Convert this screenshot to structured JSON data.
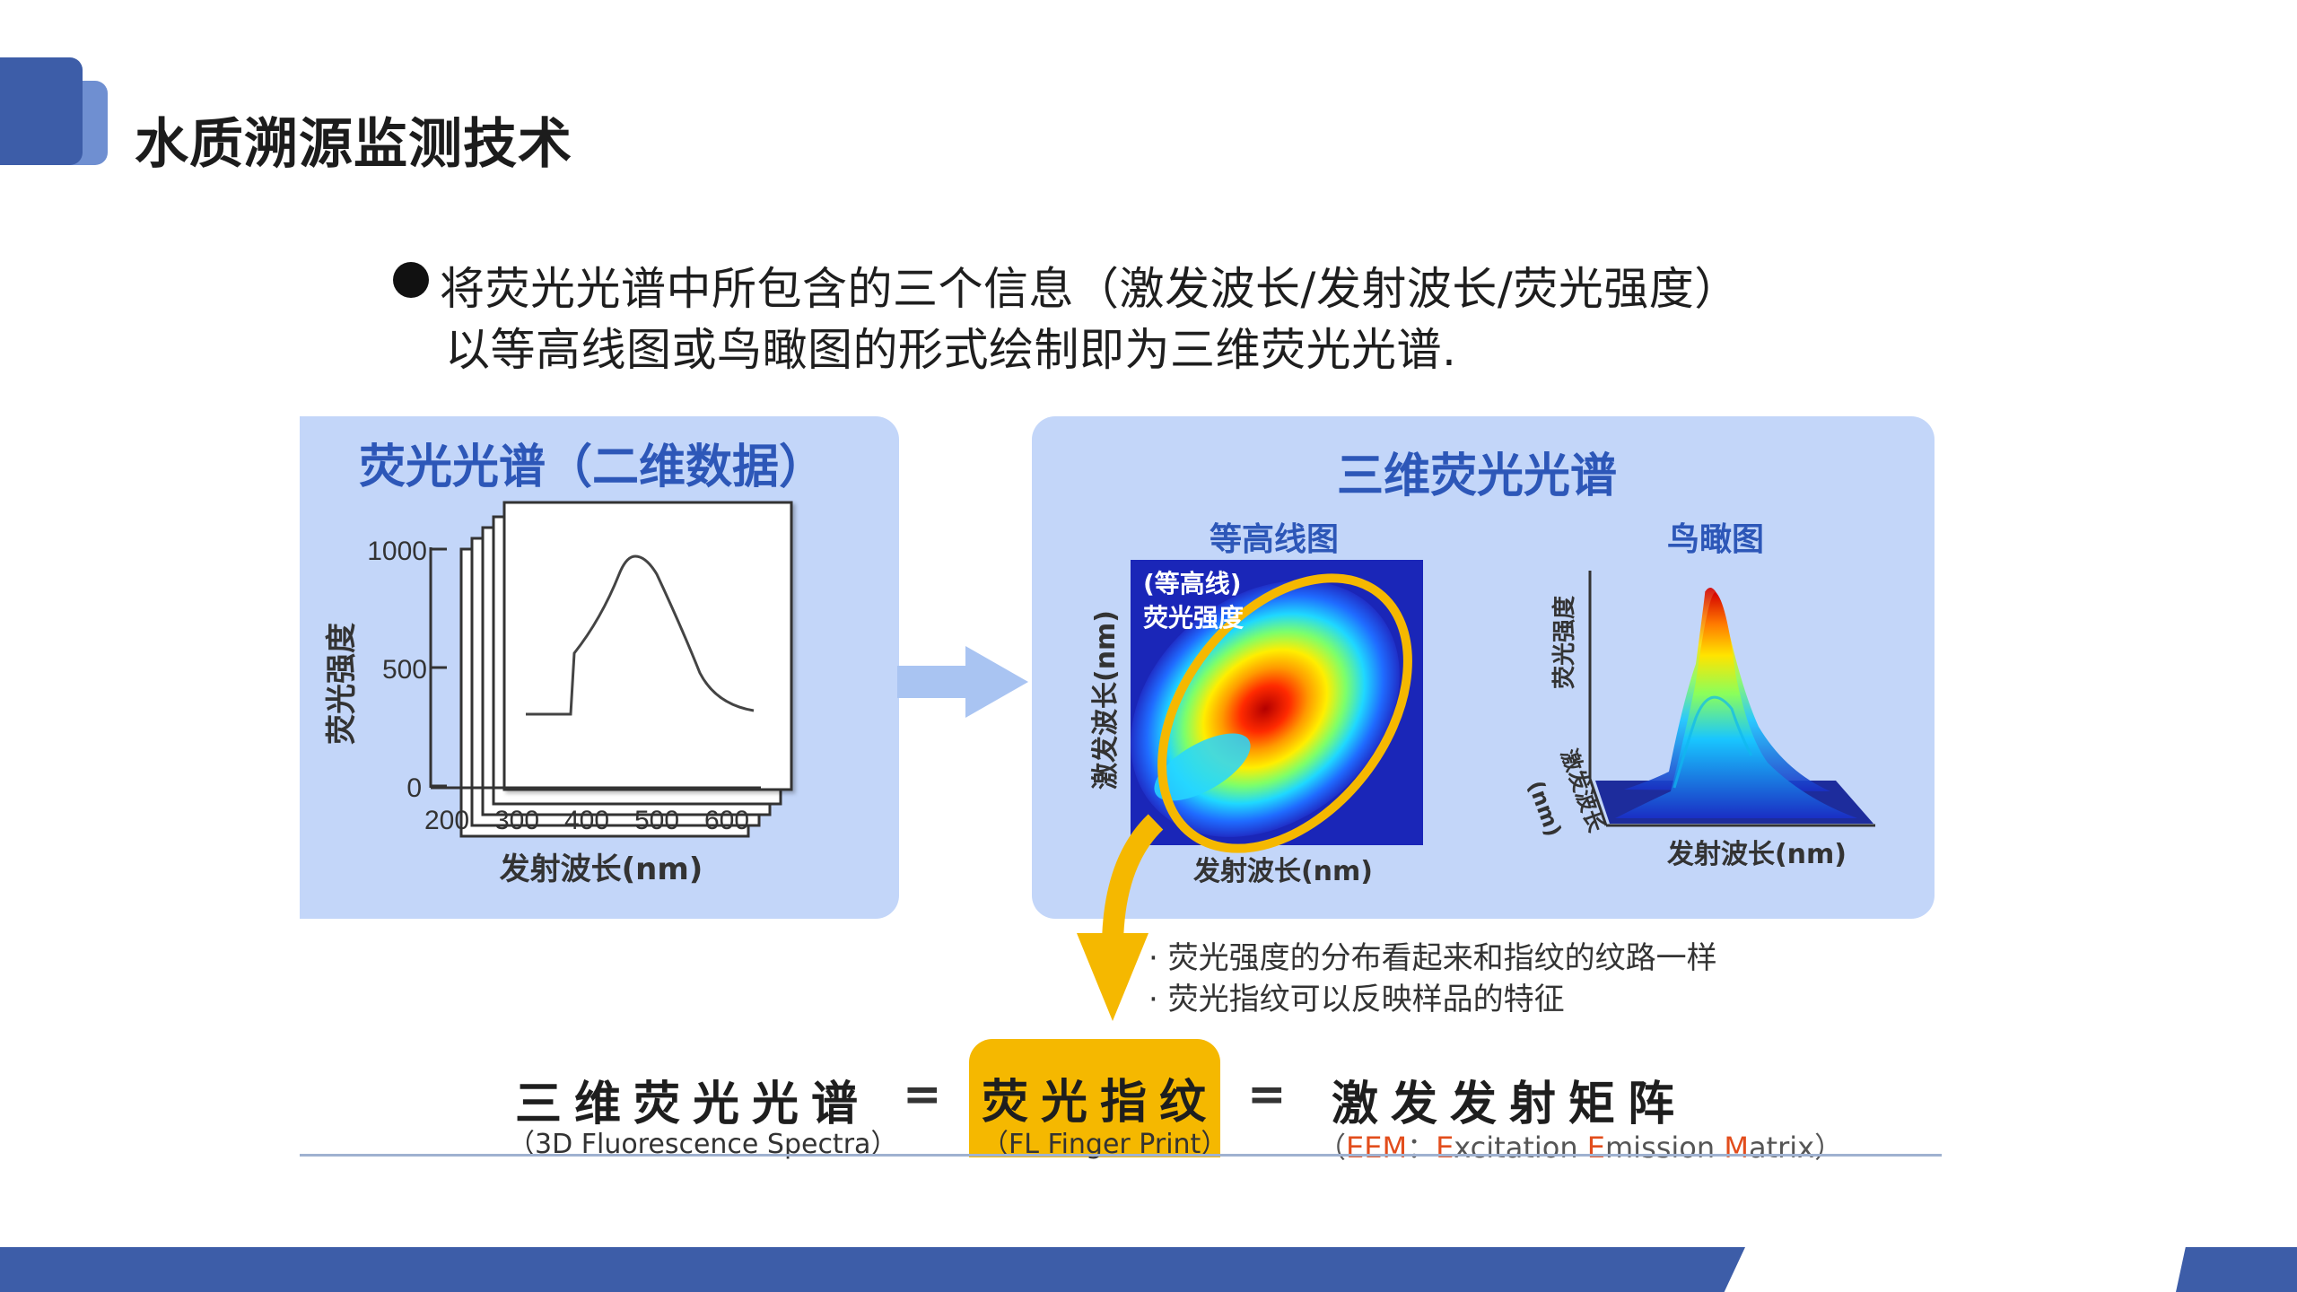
{
  "header": {
    "title": "水质溯源监测技术"
  },
  "bullet": {
    "line1": "将荧光光谱中所包含的三个信息（激发波长/发射波长/荧光强度）",
    "line2": "以等高线图或鸟瞰图的形式绘制即为三维荧光光谱."
  },
  "left_panel": {
    "title": "荧光光谱（二维数据）",
    "y_label": "荧光强度",
    "x_label": "发射波长(nm)",
    "y_ticks": [
      "1000",
      "500",
      "0"
    ],
    "x_ticks": [
      "200",
      "300",
      "400",
      "500",
      "600"
    ]
  },
  "right_panel": {
    "title": "三维荧光光谱",
    "contour": {
      "title": "等高线图",
      "label_line1": "(等高线)",
      "label_line2": "荧光强度",
      "y_label": "激发波长(nm)",
      "x_label": "发射波长(nm)"
    },
    "birdseye": {
      "title": "鸟瞰图",
      "z_label": "荧光强度",
      "y_label": "激发波长",
      "y_unit": "(nm)",
      "x_label": "发射波长(nm)"
    }
  },
  "notes": [
    "· 荧光强度的分布看起来和指纹的纹路一样",
    "· 荧光指纹可以反映样品的特征"
  ],
  "equation": {
    "left": "三维荧光光谱",
    "left_sub": "（3D Fluorescence Spectra）",
    "sign": "=",
    "middle": "荧光指纹",
    "middle_sub": "（FL Finger Print）",
    "right": "激发发射矩阵",
    "right_sub_open": "（",
    "right_sub_eem": "EEM",
    "right_sub_colon": "：",
    "right_sub_e1": "E",
    "right_sub_xc": "xcitation ",
    "right_sub_e2": "E",
    "right_sub_mission": "mission ",
    "right_sub_m": "M",
    "right_sub_atrix": "atrix",
    "right_sub_close": "）"
  },
  "colors": {
    "brand_blue": "#3d5da8",
    "panel_blue": "#c3d6f9",
    "title_blue": "#2d57b8",
    "highlight_yellow": "#f5b800",
    "eem_red": "#e24d1c"
  }
}
